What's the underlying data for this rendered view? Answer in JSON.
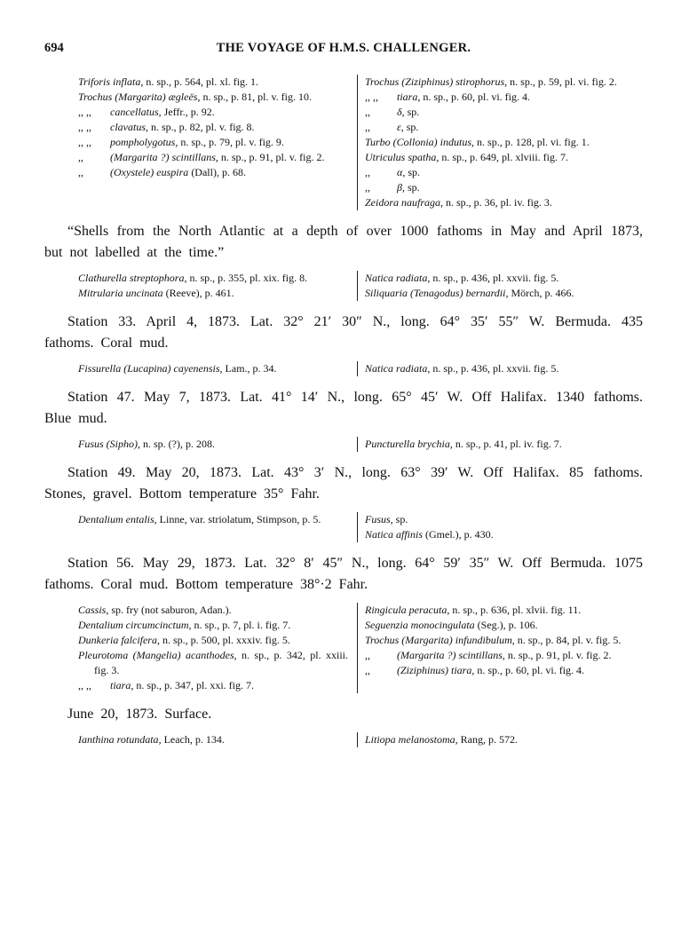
{
  "header": {
    "page_number": "694",
    "title": "THE VOYAGE OF H.M.S. CHALLENGER."
  },
  "sections": [
    {
      "left": [
        {
          "name": "Triforis inflata",
          "rest": ", n. sp., p. 564, pl. xl. fig. 1."
        },
        {
          "name": "Trochus (Margarita) ægleës",
          "rest": ", n. sp., p. 81, pl. v. fig. 10."
        },
        {
          "prefix": ",, ,,",
          "name": "cancellatus",
          "rest": ", Jeffr., p. 92."
        },
        {
          "prefix": ",, ,,",
          "name": "clavatus",
          "rest": ", n. sp., p. 82, pl. v. fig. 8."
        },
        {
          "prefix": ",, ,,",
          "name": "pompholygotus",
          "rest": ", n. sp., p. 79, pl. v. fig. 9."
        },
        {
          "prefix": ",,",
          "name": "(Margarita ?) scintillans",
          "rest": ", n. sp., p. 91, pl. v. fig. 2."
        },
        {
          "prefix": ",,",
          "name": "(Oxystele) euspira",
          "rest": " (Dall), p. 68."
        }
      ],
      "right": [
        {
          "name": "Trochus (Ziziphinus) stirophorus",
          "rest": ", n. sp., p. 59, pl. vi. fig. 2."
        },
        {
          "prefix": ",, ,,",
          "name": "tiara",
          "rest": ", n. sp., p. 60, pl. vi. fig. 4."
        },
        {
          "prefix": ",,",
          "name": "δ",
          "rest": ", sp."
        },
        {
          "prefix": ",,",
          "name": "ε",
          "rest": ", sp."
        },
        {
          "name": "Turbo (Collonia) indutus",
          "rest": ", n. sp., p. 128, pl. vi. fig. 1."
        },
        {
          "name": "Utriculus spatha",
          "rest": ", n. sp., p. 649, pl. xlviii. fig. 7."
        },
        {
          "prefix": ",,",
          "name": "α",
          "rest": ", sp."
        },
        {
          "prefix": ",,",
          "name": "β",
          "rest": ", sp."
        },
        {
          "name": "Zeidora naufraga",
          "rest": ", n. sp., p. 36, pl. iv. fig. 3."
        }
      ]
    },
    {
      "heading": "“Shells from the North Atlantic at a depth of over 1000 fathoms in May and April 1873, but not labelled at the time.”",
      "left": [
        {
          "name": "Clathurella streptophora",
          "rest": ", n. sp., p. 355, pl. xix. fig. 8."
        },
        {
          "name": "Mitrularia uncinata",
          "rest": " (Reeve), p. 461."
        }
      ],
      "right": [
        {
          "name": "Natica radiata",
          "rest": ", n. sp., p. 436, pl. xxvii. fig. 5."
        },
        {
          "name": "Siliquaria (Tenagodus) bernardii",
          "rest": ", Mörch, p. 466."
        }
      ]
    },
    {
      "heading": "Station 33. April 4, 1873. Lat. 32° 21′ 30″ N., long. 64° 35′ 55″ W. Bermuda. 435 fathoms. Coral mud.",
      "left": [
        {
          "name": "Fissurella (Lucapina) cayenensis",
          "rest": ", Lam., p. 34."
        }
      ],
      "right": [
        {
          "name": "Natica radiata",
          "rest": ", n. sp., p. 436, pl. xxvii. fig. 5."
        }
      ]
    },
    {
      "heading": "Station 47. May 7, 1873. Lat. 41° 14′ N., long. 65° 45′ W. Off Halifax. 1340 fathoms. Blue mud.",
      "left": [
        {
          "name": "Fusus (Sipho)",
          "rest": ", n. sp. (?), p. 208."
        }
      ],
      "right": [
        {
          "name": "Puncturella brychia",
          "rest": ", n. sp., p. 41, pl. iv. fig. 7."
        }
      ]
    },
    {
      "heading": "Station 49. May 20, 1873. Lat. 43° 3′ N., long. 63° 39′ W. Off Halifax. 85 fathoms. Stones, gravel. Bottom temperature 35° Fahr.",
      "left": [
        {
          "name": "Dentalium entalis",
          "rest": ", Linne, var. striolatum, Stimpson, p. 5."
        }
      ],
      "right": [
        {
          "name": "Fusus",
          "rest": ", sp."
        },
        {
          "name": "Natica affinis",
          "rest": " (Gmel.), p. 430."
        }
      ]
    },
    {
      "heading": "Station 56. May 29, 1873. Lat. 32° 8′ 45″ N., long. 64° 59′ 35″ W. Off Bermuda. 1075 fathoms. Coral mud. Bottom temperature 38°·2 Fahr.",
      "left": [
        {
          "name": "Cassis",
          "rest": ", sp. fry (not saburon, Adan.)."
        },
        {
          "name": "Dentalium circumcinctum",
          "rest": ", n. sp., p. 7, pl. i. fig. 7."
        },
        {
          "name": "Dunkeria falcifera",
          "rest": ", n. sp., p. 500, pl. xxxiv. fig. 5."
        },
        {
          "name": "Pleurotoma (Mangelia) acanthodes",
          "rest": ", n. sp., p. 342, pl. xxiii. fig. 3."
        },
        {
          "prefix": ",, ,,",
          "name": "tiara",
          "rest": ", n. sp., p. 347, pl. xxi. fig. 7."
        }
      ],
      "right": [
        {
          "name": "Ringicula peracuta",
          "rest": ", n. sp., p. 636, pl. xlvii. fig. 11."
        },
        {
          "name": "Seguenzia monocingulata",
          "rest": " (Seg.), p. 106."
        },
        {
          "name": "Trochus (Margarita) infundibulum",
          "rest": ", n. sp., p. 84, pl. v. fig. 5."
        },
        {
          "prefix": ",,",
          "name": "(Margarita ?) scintillans",
          "rest": ", n. sp., p. 91, pl. v. fig. 2."
        },
        {
          "prefix": ",,",
          "name": "(Ziziphinus) tiara",
          "rest": ", n. sp., p. 60, pl. vi. fig. 4."
        }
      ]
    },
    {
      "heading": "June 20, 1873. Surface.",
      "left": [
        {
          "name": "Ianthina rotundata",
          "rest": ", Leach, p. 134."
        }
      ],
      "right": [
        {
          "name": "Litiopa melanostoma",
          "rest": ", Rang, p. 572."
        }
      ]
    }
  ]
}
